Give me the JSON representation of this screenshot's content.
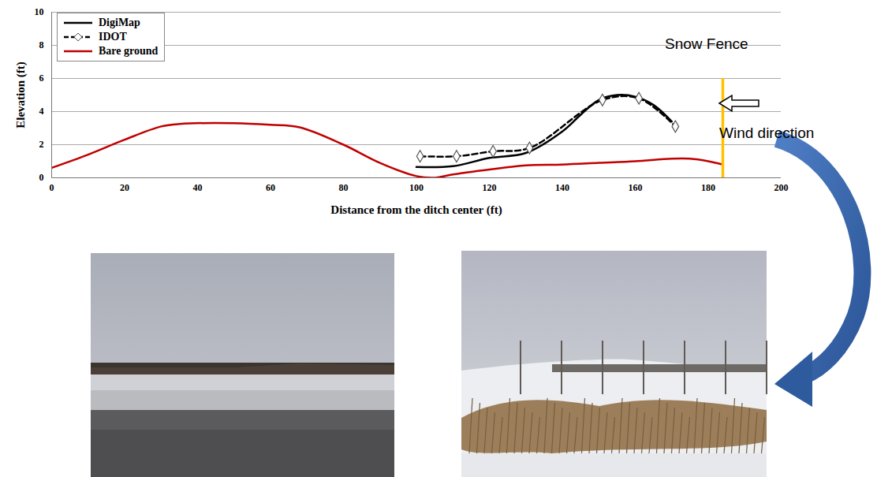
{
  "chart_data": {
    "type": "line",
    "x_label": "Distance from the ditch center (ft)",
    "y_label": "Elevation (ft)",
    "xlim": [
      0,
      200
    ],
    "ylim": [
      0,
      10
    ],
    "xticks": [
      0,
      20,
      40,
      60,
      80,
      100,
      120,
      140,
      160,
      180,
      200
    ],
    "yticks": [
      0,
      2,
      4,
      6,
      8,
      10
    ],
    "grid": true,
    "legend": "top-left",
    "series": [
      {
        "name": "DigiMap",
        "color": "#000000",
        "line_style": "solid",
        "marker": "none",
        "x": [
          100,
          110,
          120,
          130,
          140,
          145,
          150,
          155,
          160,
          165,
          170
        ],
        "values": [
          0.65,
          0.7,
          1.2,
          1.5,
          2.8,
          3.8,
          4.7,
          5.0,
          4.9,
          4.4,
          3.4
        ]
      },
      {
        "name": "IDOT",
        "color": "#000000",
        "line_style": "dashed",
        "marker": "diamond",
        "x": [
          101,
          111,
          121,
          131,
          151,
          161,
          171
        ],
        "values": [
          1.3,
          1.3,
          1.6,
          1.8,
          4.7,
          4.8,
          3.1
        ]
      },
      {
        "name": "Bare ground",
        "color": "#c00000",
        "line_style": "solid",
        "marker": "none",
        "x": [
          0,
          10,
          20,
          30,
          35,
          50,
          60,
          68,
          80,
          90,
          100,
          105,
          110,
          120,
          130,
          140,
          150,
          160,
          170,
          175,
          180,
          184
        ],
        "values": [
          0.6,
          1.4,
          2.3,
          3.1,
          3.25,
          3.3,
          3.2,
          3.05,
          2.0,
          0.9,
          0.1,
          0,
          0.2,
          0.5,
          0.75,
          0.8,
          0.9,
          1.0,
          1.15,
          1.15,
          1.0,
          0.8
        ]
      }
    ],
    "annotations": [
      {
        "text": "Snow Fence",
        "x": 184,
        "y_range": [
          0,
          6
        ],
        "color": "#ffc000"
      },
      {
        "text": "Wind direction"
      }
    ]
  }
}
